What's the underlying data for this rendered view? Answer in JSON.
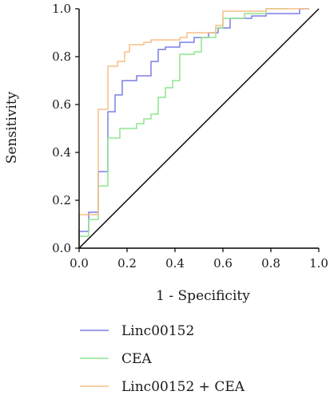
{
  "chart_data": {
    "type": "line",
    "xlabel": "1 - Specificity",
    "ylabel": "Sensitivity",
    "xlim": [
      0,
      1
    ],
    "ylim": [
      0,
      1
    ],
    "xticks": [
      "0.0",
      "0.2",
      "0.4",
      "0.6",
      "0.8",
      "1.0"
    ],
    "yticks": [
      "0.0",
      "0.2",
      "0.4",
      "0.6",
      "0.8",
      "1.0"
    ],
    "grid": false,
    "legend_position": "bottom",
    "reference_line": {
      "x": [
        0,
        1
      ],
      "y": [
        0,
        1
      ],
      "color": "#000000"
    },
    "series": [
      {
        "name": "Linc00152",
        "color": "#7b7fe6",
        "points": [
          [
            0,
            0
          ],
          [
            0,
            0.07
          ],
          [
            0.04,
            0.07
          ],
          [
            0.04,
            0.15
          ],
          [
            0.08,
            0.15
          ],
          [
            0.08,
            0.32
          ],
          [
            0.12,
            0.32
          ],
          [
            0.12,
            0.57
          ],
          [
            0.15,
            0.57
          ],
          [
            0.15,
            0.64
          ],
          [
            0.18,
            0.64
          ],
          [
            0.18,
            0.7
          ],
          [
            0.24,
            0.7
          ],
          [
            0.24,
            0.72
          ],
          [
            0.3,
            0.72
          ],
          [
            0.3,
            0.78
          ],
          [
            0.33,
            0.78
          ],
          [
            0.33,
            0.83
          ],
          [
            0.36,
            0.83
          ],
          [
            0.36,
            0.84
          ],
          [
            0.42,
            0.84
          ],
          [
            0.42,
            0.86
          ],
          [
            0.48,
            0.86
          ],
          [
            0.48,
            0.88
          ],
          [
            0.54,
            0.88
          ],
          [
            0.54,
            0.9
          ],
          [
            0.58,
            0.9
          ],
          [
            0.58,
            0.92
          ],
          [
            0.63,
            0.92
          ],
          [
            0.63,
            0.96
          ],
          [
            0.72,
            0.96
          ],
          [
            0.72,
            0.97
          ],
          [
            0.78,
            0.97
          ],
          [
            0.78,
            0.98
          ],
          [
            0.92,
            0.98
          ],
          [
            0.92,
            1.0
          ],
          [
            0.96,
            1.0
          ]
        ]
      },
      {
        "name": "CEA",
        "color": "#8fe68f",
        "points": [
          [
            0,
            0
          ],
          [
            0,
            0.05
          ],
          [
            0.04,
            0.05
          ],
          [
            0.04,
            0.12
          ],
          [
            0.08,
            0.12
          ],
          [
            0.08,
            0.26
          ],
          [
            0.12,
            0.26
          ],
          [
            0.12,
            0.46
          ],
          [
            0.17,
            0.46
          ],
          [
            0.17,
            0.5
          ],
          [
            0.24,
            0.5
          ],
          [
            0.24,
            0.52
          ],
          [
            0.27,
            0.52
          ],
          [
            0.27,
            0.54
          ],
          [
            0.3,
            0.54
          ],
          [
            0.3,
            0.56
          ],
          [
            0.33,
            0.56
          ],
          [
            0.33,
            0.63
          ],
          [
            0.36,
            0.63
          ],
          [
            0.36,
            0.67
          ],
          [
            0.39,
            0.67
          ],
          [
            0.39,
            0.7
          ],
          [
            0.42,
            0.7
          ],
          [
            0.42,
            0.81
          ],
          [
            0.48,
            0.81
          ],
          [
            0.48,
            0.82
          ],
          [
            0.51,
            0.82
          ],
          [
            0.51,
            0.88
          ],
          [
            0.57,
            0.88
          ],
          [
            0.57,
            0.92
          ],
          [
            0.6,
            0.92
          ],
          [
            0.6,
            0.96
          ],
          [
            0.69,
            0.96
          ],
          [
            0.69,
            0.98
          ],
          [
            0.78,
            0.98
          ],
          [
            0.78,
            1.0
          ],
          [
            0.87,
            1.0
          ]
        ]
      },
      {
        "name": "Linc00152 + CEA",
        "color": "#f5bf86",
        "points": [
          [
            0,
            0
          ],
          [
            0,
            0.14
          ],
          [
            0.04,
            0.14
          ],
          [
            0.04,
            0.14
          ],
          [
            0.08,
            0.14
          ],
          [
            0.08,
            0.58
          ],
          [
            0.12,
            0.58
          ],
          [
            0.12,
            0.76
          ],
          [
            0.16,
            0.76
          ],
          [
            0.16,
            0.78
          ],
          [
            0.19,
            0.78
          ],
          [
            0.19,
            0.82
          ],
          [
            0.21,
            0.82
          ],
          [
            0.21,
            0.85
          ],
          [
            0.27,
            0.85
          ],
          [
            0.27,
            0.86
          ],
          [
            0.3,
            0.86
          ],
          [
            0.3,
            0.87
          ],
          [
            0.42,
            0.87
          ],
          [
            0.42,
            0.88
          ],
          [
            0.45,
            0.88
          ],
          [
            0.45,
            0.9
          ],
          [
            0.57,
            0.9
          ],
          [
            0.57,
            0.93
          ],
          [
            0.6,
            0.93
          ],
          [
            0.6,
            0.99
          ],
          [
            0.78,
            0.99
          ],
          [
            0.78,
            1.0
          ],
          [
            0.96,
            1.0
          ]
        ]
      }
    ]
  }
}
